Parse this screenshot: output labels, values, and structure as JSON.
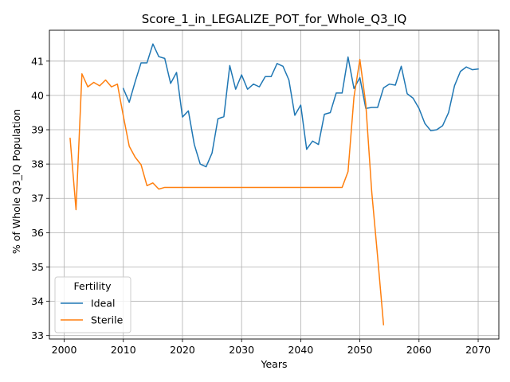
{
  "chart_data": {
    "type": "line",
    "title": "Score_1_in_LEGALIZE_POT_for_Whole_Q3_IQ",
    "xlabel": "Years",
    "ylabel": "% of Whole Q3_IQ Population",
    "xlim": [
      1997.5,
      2073.5
    ],
    "ylim": [
      32.9,
      41.9
    ],
    "xticks": [
      2000,
      2010,
      2020,
      2030,
      2040,
      2050,
      2060,
      2070
    ],
    "yticks": [
      33,
      34,
      35,
      36,
      37,
      38,
      39,
      40,
      41
    ],
    "grid": true,
    "legend": {
      "title": "Fertility",
      "placement": "lower-left"
    },
    "series": [
      {
        "name": "Ideal",
        "color": "#1f77b4",
        "x": [
          2010,
          2011,
          2012,
          2013,
          2014,
          2015,
          2016,
          2017,
          2018,
          2019,
          2020,
          2021,
          2022,
          2023,
          2024,
          2025,
          2026,
          2027,
          2028,
          2029,
          2030,
          2031,
          2032,
          2033,
          2034,
          2035,
          2036,
          2037,
          2038,
          2039,
          2040,
          2041,
          2042,
          2043,
          2044,
          2045,
          2046,
          2047,
          2048,
          2049,
          2050,
          2051,
          2052,
          2053,
          2054,
          2055,
          2056,
          2057,
          2058,
          2059,
          2060,
          2061,
          2062,
          2063,
          2064,
          2065,
          2066,
          2067,
          2068,
          2069,
          2070
        ],
        "y": [
          40.2,
          39.8,
          40.4,
          40.95,
          40.95,
          41.5,
          41.13,
          41.08,
          40.35,
          40.67,
          39.37,
          39.55,
          38.57,
          38.0,
          37.92,
          38.32,
          39.32,
          39.38,
          40.87,
          40.18,
          40.6,
          40.18,
          40.33,
          40.25,
          40.55,
          40.55,
          40.93,
          40.85,
          40.45,
          39.42,
          39.72,
          38.43,
          38.67,
          38.57,
          39.45,
          39.5,
          40.07,
          40.07,
          41.12,
          40.2,
          40.52,
          39.62,
          39.65,
          39.65,
          40.22,
          40.33,
          40.3,
          40.85,
          40.05,
          39.92,
          39.62,
          39.18,
          38.97,
          39.0,
          39.12,
          39.5,
          40.28,
          40.7,
          40.83,
          40.75,
          40.77
        ]
      },
      {
        "name": "Sterile",
        "color": "#ff7f0e",
        "x": [
          2001,
          2002,
          2003,
          2004,
          2005,
          2006,
          2007,
          2008,
          2009,
          2010,
          2011,
          2012,
          2013,
          2014,
          2015,
          2016,
          2017,
          2018,
          2019,
          2020,
          2021,
          2022,
          2023,
          2024,
          2025,
          2026,
          2027,
          2028,
          2029,
          2030,
          2031,
          2032,
          2033,
          2034,
          2035,
          2036,
          2037,
          2038,
          2039,
          2040,
          2041,
          2042,
          2043,
          2044,
          2045,
          2046,
          2047,
          2048,
          2049,
          2050,
          2051,
          2052,
          2053,
          2054
        ],
        "y": [
          38.75,
          36.67,
          40.63,
          40.25,
          40.38,
          40.28,
          40.45,
          40.25,
          40.33,
          39.4,
          38.52,
          38.2,
          37.98,
          37.37,
          37.45,
          37.27,
          37.32,
          37.32,
          37.32,
          37.32,
          37.32,
          37.32,
          37.32,
          37.32,
          37.32,
          37.32,
          37.32,
          37.32,
          37.32,
          37.32,
          37.32,
          37.32,
          37.32,
          37.32,
          37.32,
          37.32,
          37.32,
          37.32,
          37.32,
          37.32,
          37.32,
          37.32,
          37.32,
          37.32,
          37.32,
          37.32,
          37.32,
          37.78,
          39.95,
          41.05,
          39.75,
          37.2,
          35.3,
          33.32
        ]
      }
    ]
  }
}
